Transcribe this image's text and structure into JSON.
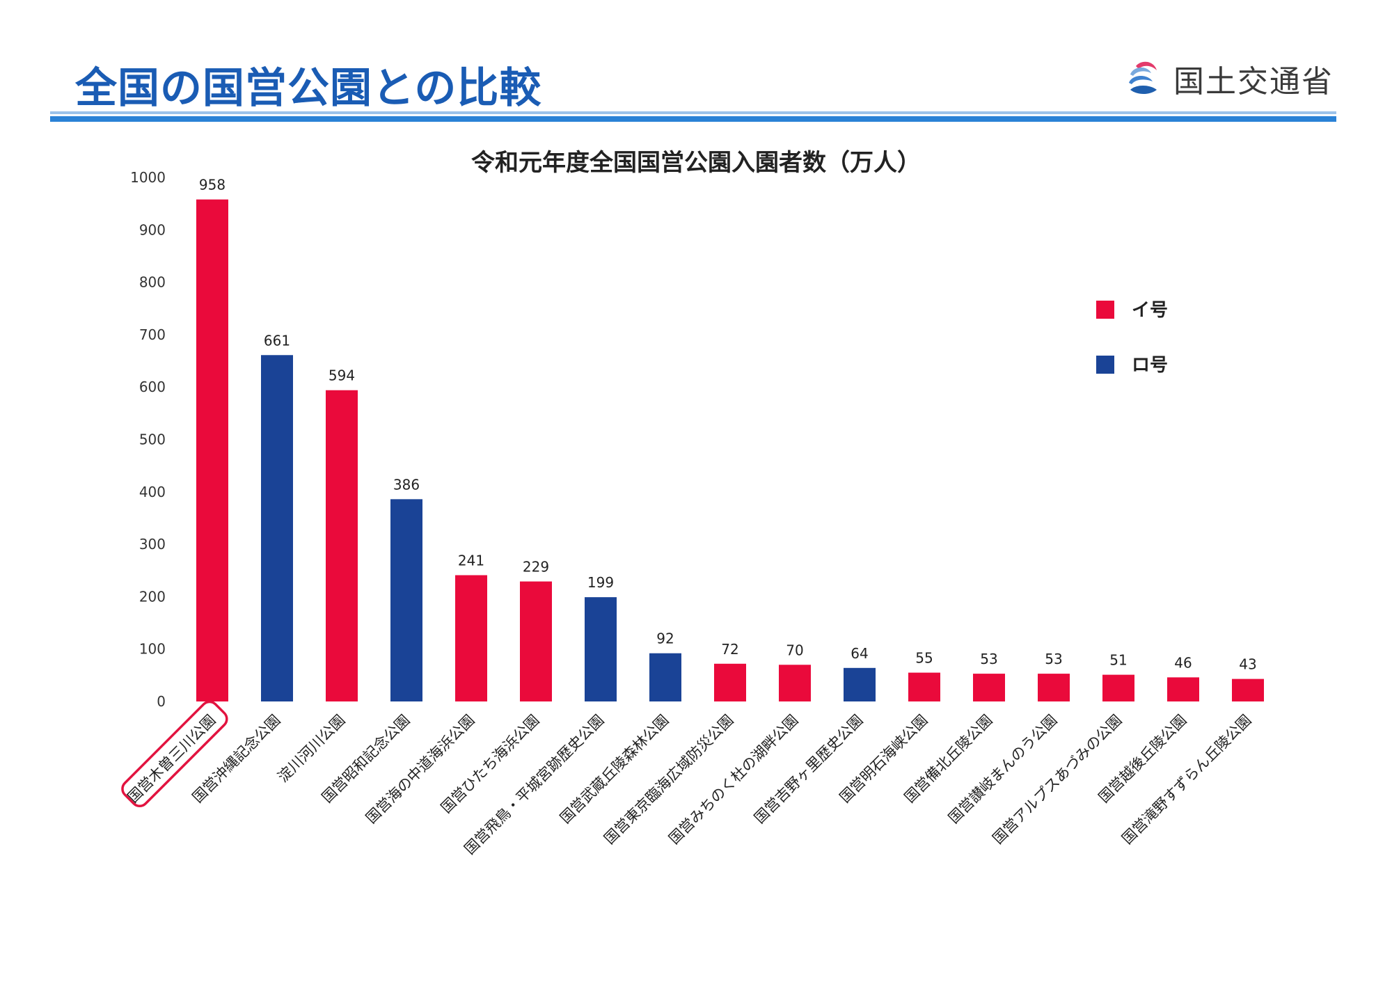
{
  "header": {
    "title": "全国の国営公園との比較",
    "ministry": "国土交通省"
  },
  "colors": {
    "type_i": "#ea0a3b",
    "type_ro": "#1a4396",
    "title_blue": "#1a5cb4",
    "highlight_outline": "#e2133f"
  },
  "chart_data": {
    "type": "bar",
    "title": "令和元年度全国国営公園入園者数（万人）",
    "xlabel": "",
    "ylabel": "",
    "ylim": [
      0,
      1000
    ],
    "yticks": [
      0,
      100,
      200,
      300,
      400,
      500,
      600,
      700,
      800,
      900,
      1000
    ],
    "categories": [
      "国営木曽三川公園",
      "国営沖縄記念公園",
      "淀川河川公園",
      "国営昭和記念公園",
      "国営海の中道海浜公園",
      "国営ひたち海浜公園",
      "国営飛鳥・平城宮跡歴史公園",
      "国営武蔵丘陵森林公園",
      "国営東京臨海広域防災公園",
      "国営みちのく杜の湖畔公園",
      "国営吉野ヶ里歴史公園",
      "国営明石海峡公園",
      "国営備北丘陵公園",
      "国営讃岐まんのう公園",
      "国営アルプスあづみの公園",
      "国営越後丘陵公園",
      "国営滝野すずらん丘陵公園"
    ],
    "values": [
      958,
      661,
      594,
      386,
      241,
      229,
      199,
      92,
      72,
      70,
      64,
      55,
      53,
      53,
      51,
      46,
      43
    ],
    "bar_types": [
      "イ号",
      "ロ号",
      "イ号",
      "ロ号",
      "イ号",
      "イ号",
      "ロ号",
      "ロ号",
      "イ号",
      "イ号",
      "ロ号",
      "イ号",
      "イ号",
      "イ号",
      "イ号",
      "イ号",
      "イ号"
    ],
    "legend": [
      {
        "name": "イ号",
        "color": "#ea0a3b"
      },
      {
        "name": "ロ号",
        "color": "#1a4396"
      }
    ],
    "legend_position": "right",
    "highlighted_category": "国営木曽三川公園",
    "grid": false
  }
}
